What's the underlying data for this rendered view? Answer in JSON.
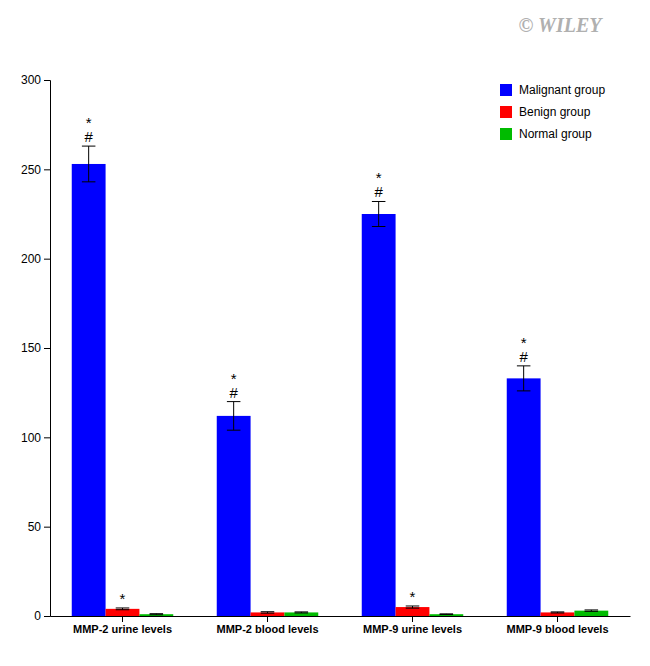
{
  "chart_data": {
    "type": "bar",
    "categories": [
      "MMP-2 urine levels",
      "MMP-2 blood levels",
      "MMP-9 urine levels",
      "MMP-9 blood levels"
    ],
    "series": [
      {
        "name": "Malignant group",
        "color": "#0000FF",
        "values": [
          253,
          112,
          225,
          133
        ],
        "errors": [
          10,
          8,
          7,
          7
        ]
      },
      {
        "name": "Benign group",
        "color": "#FF0000",
        "values": [
          4,
          2,
          5,
          2
        ],
        "errors": [
          0.5,
          0.4,
          0.6,
          0.3
        ]
      },
      {
        "name": "Normal group",
        "color": "#00BB00",
        "values": [
          1,
          2,
          1,
          3
        ],
        "errors": [
          0.3,
          0.3,
          0.2,
          0.4
        ]
      }
    ],
    "ylim": [
      0,
      300
    ],
    "yticks": [
      0,
      50,
      100,
      150,
      200,
      250,
      300
    ],
    "grid": false,
    "legend": "upper right",
    "annotations": [
      {
        "text": "*",
        "category": "MMP-2 urine levels",
        "series": "Malignant group"
      },
      {
        "text": "#",
        "category": "MMP-2 urine levels",
        "series": "Malignant group"
      },
      {
        "text": "*",
        "category": "MMP-2 urine levels",
        "series": "Benign group"
      },
      {
        "text": "*",
        "category": "MMP-2 blood levels",
        "series": "Malignant group"
      },
      {
        "text": "#",
        "category": "MMP-2 blood levels",
        "series": "Malignant group"
      },
      {
        "text": "*",
        "category": "MMP-9 urine levels",
        "series": "Malignant group"
      },
      {
        "text": "#",
        "category": "MMP-9 urine levels",
        "series": "Malignant group"
      },
      {
        "text": "*",
        "category": "MMP-9 urine levels",
        "series": "Benign group"
      },
      {
        "text": "*",
        "category": "MMP-9 blood levels",
        "series": "Malignant group"
      },
      {
        "text": "#",
        "category": "MMP-9 blood levels",
        "series": "Malignant group"
      },
      {
        "text": "©  WILEY"
      }
    ]
  }
}
